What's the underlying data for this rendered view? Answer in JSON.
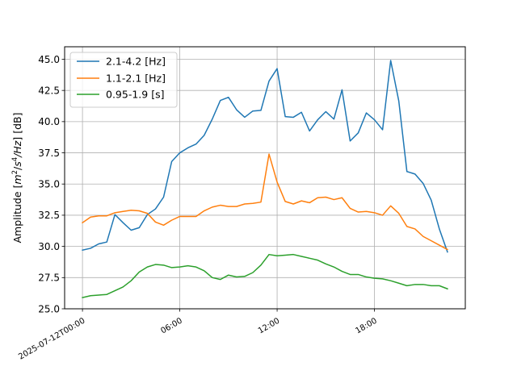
{
  "chart_data": {
    "type": "line",
    "title": "",
    "xlabel": "",
    "ylabel": {
      "prefix": "Amplitude [",
      "m": "m",
      "exp1": "2",
      "slash": "/",
      "s": "s",
      "exp2": "4",
      "hz": "/Hz",
      "suffix": "] [dB]"
    },
    "ylim": [
      25.0,
      46.0
    ],
    "yticks": [
      "25.0",
      "27.5",
      "30.0",
      "32.5",
      "35.0",
      "37.5",
      "40.0",
      "42.5",
      "45.0"
    ],
    "yticks_values": [
      25.0,
      27.5,
      30.0,
      32.5,
      35.0,
      37.5,
      40.0,
      42.5,
      45.0
    ],
    "xlim_hours": [
      -1.1,
      23.6
    ],
    "xticks": [
      "2025-07-12T00:00",
      "06:00",
      "12:00",
      "18:00"
    ],
    "xticks_hours": [
      0,
      6,
      12,
      18
    ],
    "grid": true,
    "legend_position": "top-left",
    "x_hours": [
      0,
      0.5,
      1,
      1.5,
      2,
      2.5,
      3,
      3.5,
      4,
      4.5,
      5,
      5.5,
      6,
      6.5,
      7,
      7.5,
      8,
      8.5,
      9,
      9.5,
      10,
      10.5,
      11,
      11.5,
      12,
      12.5,
      13,
      13.5,
      14,
      14.5,
      15,
      15.5,
      16,
      16.5,
      17,
      17.5,
      18,
      18.5,
      19,
      19.5,
      20,
      20.5,
      21,
      21.5,
      22,
      22.5
    ],
    "series": [
      {
        "name": "2.1-4.2 [Hz]",
        "color": "#1f77b4",
        "values": [
          29.7,
          29.85,
          30.2,
          30.35,
          32.55,
          31.9,
          31.3,
          31.5,
          32.55,
          33.0,
          33.95,
          36.8,
          37.5,
          37.9,
          38.2,
          38.9,
          40.2,
          41.7,
          41.95,
          40.95,
          40.35,
          40.85,
          40.9,
          43.25,
          44.25,
          40.4,
          40.35,
          40.75,
          39.25,
          40.15,
          40.8,
          40.2,
          42.55,
          38.45,
          39.1,
          40.7,
          40.15,
          39.35,
          44.9,
          41.65,
          36.0,
          35.8,
          35.05,
          33.7,
          31.4,
          29.55
        ]
      },
      {
        "name": "1.1-2.1 [Hz]",
        "color": "#ff7f0e",
        "values": [
          31.9,
          32.35,
          32.45,
          32.45,
          32.7,
          32.8,
          32.9,
          32.85,
          32.65,
          31.95,
          31.7,
          32.1,
          32.4,
          32.4,
          32.4,
          32.85,
          33.15,
          33.3,
          33.2,
          33.2,
          33.4,
          33.45,
          33.55,
          37.4,
          35.15,
          33.6,
          33.4,
          33.65,
          33.5,
          33.9,
          33.95,
          33.75,
          33.9,
          33.05,
          32.75,
          32.8,
          32.7,
          32.5,
          33.25,
          32.65,
          31.6,
          31.4,
          30.8,
          30.45,
          30.1,
          29.75
        ]
      },
      {
        "name": "0.95-1.9 [s]",
        "color": "#2ca02c",
        "values": [
          25.9,
          26.05,
          26.1,
          26.15,
          26.45,
          26.75,
          27.25,
          27.95,
          28.35,
          28.55,
          28.5,
          28.3,
          28.35,
          28.45,
          28.35,
          28.05,
          27.5,
          27.35,
          27.7,
          27.55,
          27.6,
          27.9,
          28.5,
          29.35,
          29.25,
          29.3,
          29.35,
          29.2,
          29.05,
          28.9,
          28.6,
          28.35,
          28.0,
          27.75,
          27.75,
          27.55,
          27.45,
          27.4,
          27.25,
          27.05,
          26.85,
          26.95,
          26.95,
          26.85,
          26.85,
          26.6
        ]
      }
    ]
  }
}
